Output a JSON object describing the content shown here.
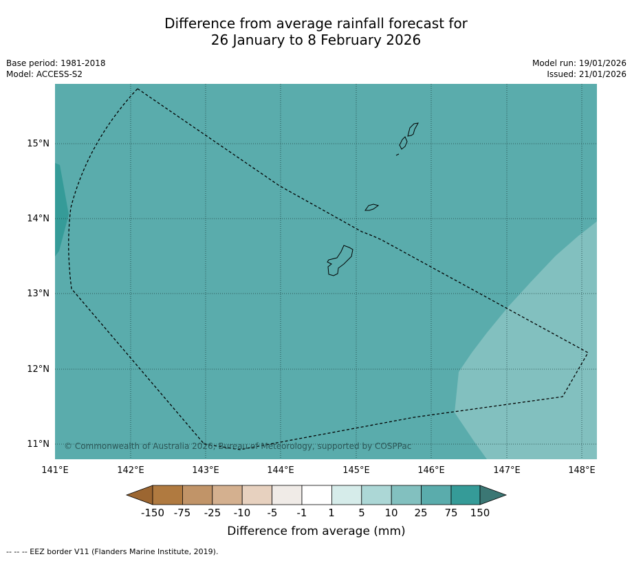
{
  "title": {
    "line1": "Difference from average rainfall forecast for",
    "line2": "26 January to 8 February 2026"
  },
  "meta": {
    "base_period": "Base period: 1981-2018",
    "model": "Model: ACCESS-S2",
    "model_run": "Model run: 19/01/2026",
    "issued": "Issued: 21/01/2026"
  },
  "map": {
    "lon_ticks": [
      "141°E",
      "142°E",
      "143°E",
      "144°E",
      "145°E",
      "146°E",
      "147°E",
      "148°E"
    ],
    "lat_ticks": [
      "15°N",
      "14°N",
      "13°N",
      "12°N",
      "11°N"
    ],
    "copyright": "© Commonwealth of Australia 2026, Bureau of Meteorology, supported by COSPPac",
    "colors": {
      "base": "#5aacac",
      "high": "#359b98",
      "low": "#82c0bf"
    }
  },
  "colorbar": {
    "ticks": [
      "-150",
      "-75",
      "-25",
      "-10",
      "-5",
      "-1",
      "1",
      "5",
      "10",
      "25",
      "75",
      "150"
    ],
    "colors": [
      "#9c6631",
      "#b07a40",
      "#c19468",
      "#d4b08f",
      "#e7d1bf",
      "#f0ebe7",
      "#ffffff",
      "#d6ecea",
      "#acd7d6",
      "#82c0bf",
      "#5aacac",
      "#359b98",
      "#3b7774"
    ],
    "label": "Difference from average (mm)"
  },
  "legend": {
    "text": "--  --  -- EEZ border V11 (Flanders Marine Institute, 2019)."
  }
}
